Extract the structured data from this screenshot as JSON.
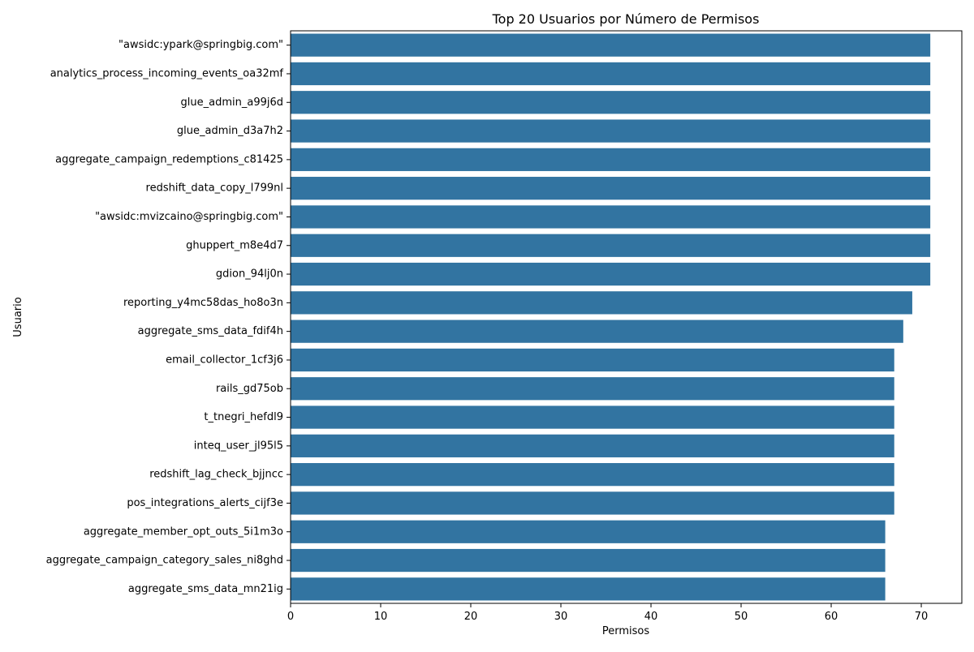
{
  "chart_data": {
    "type": "bar",
    "orientation": "horizontal",
    "title": "Top 20 Usuarios por Número de Permisos",
    "xlabel": "Permisos",
    "ylabel": "Usuario",
    "xlim": [
      0,
      74.5
    ],
    "xticks": [
      0,
      10,
      20,
      30,
      40,
      50,
      60,
      70
    ],
    "grid": false,
    "legend": "none",
    "bar_color": "#3274a1",
    "categories": [
      "\"awsidc:ypark@springbig.com\"",
      "analytics_process_incoming_events_oa32mf",
      "glue_admin_a99j6d",
      "glue_admin_d3a7h2",
      "aggregate_campaign_redemptions_c81425",
      "redshift_data_copy_l799nl",
      "\"awsidc:mvizcaino@springbig.com\"",
      "ghuppert_m8e4d7",
      "gdion_94lj0n",
      "reporting_y4mc58das_ho8o3n",
      "aggregate_sms_data_fdif4h",
      "email_collector_1cf3j6",
      "rails_gd75ob",
      "t_tnegri_hefdl9",
      "inteq_user_jl95l5",
      "redshift_lag_check_bjjncc",
      "pos_integrations_alerts_cijf3e",
      "aggregate_member_opt_outs_5i1m3o",
      "aggregate_campaign_category_sales_ni8ghd",
      "aggregate_sms_data_mn21ig"
    ],
    "values": [
      71,
      71,
      71,
      71,
      71,
      71,
      71,
      71,
      71,
      69,
      68,
      67,
      67,
      67,
      67,
      67,
      67,
      66,
      66,
      66
    ]
  }
}
